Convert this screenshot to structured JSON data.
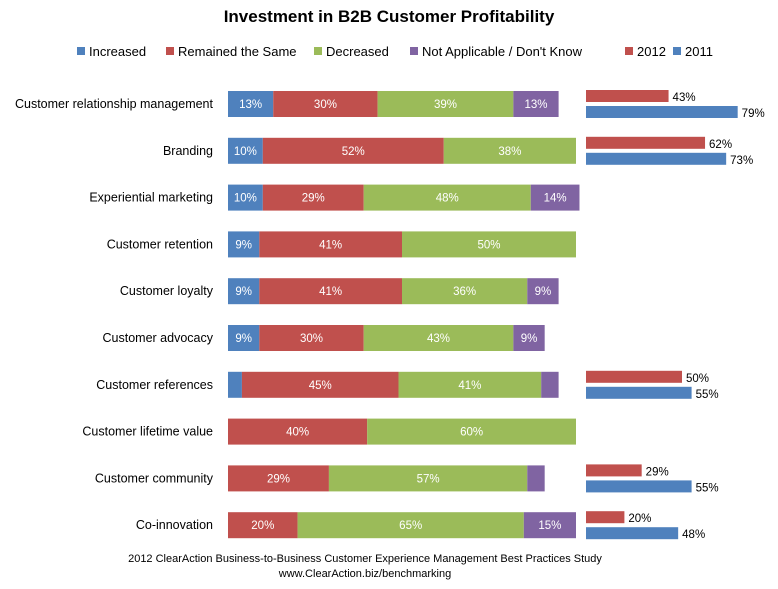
{
  "chart_data": [
    {
      "type": "bar",
      "orientation": "horizontal",
      "stacked": true,
      "title": "Investment in B2B Customer Profitability",
      "categories": [
        "Customer relationship management",
        "Branding",
        "Experiential marketing",
        "Customer retention",
        "Customer loyalty",
        "Customer advocacy",
        "Customer references",
        "Customer lifetime value",
        "Customer community",
        "Co-innovation"
      ],
      "series": [
        {
          "name": "Increased",
          "color": "#4F81BD",
          "values": [
            13,
            10,
            10,
            9,
            9,
            9,
            4,
            0,
            0,
            0
          ],
          "labels": [
            "13%",
            "10%",
            "10%",
            "9%",
            "9%",
            "9%",
            "",
            "",
            "",
            ""
          ]
        },
        {
          "name": "Remained the Same",
          "color": "#C0504D",
          "values": [
            30,
            52,
            29,
            41,
            41,
            30,
            45,
            40,
            29,
            20
          ],
          "labels": [
            "30%",
            "52%",
            "29%",
            "41%",
            "41%",
            "30%",
            "45%",
            "40%",
            "29%",
            "20%"
          ]
        },
        {
          "name": "Decreased",
          "color": "#9BBB59",
          "values": [
            39,
            38,
            48,
            50,
            36,
            43,
            41,
            60,
            57,
            65
          ],
          "labels": [
            "39%",
            "38%",
            "48%",
            "50%",
            "36%",
            "43%",
            "41%",
            "60%",
            "57%",
            "65%"
          ]
        },
        {
          "name": "Not Applicable / Don't Know",
          "color": "#8064A2",
          "values": [
            13,
            0,
            14,
            0,
            9,
            9,
            5,
            0,
            5,
            15
          ],
          "labels": [
            "13%",
            "",
            "14%",
            "",
            "9%",
            "9%",
            "",
            "",
            "",
            "15%"
          ]
        }
      ],
      "xlim": [
        0,
        100
      ],
      "legend": "top"
    },
    {
      "type": "bar",
      "orientation": "horizontal",
      "stacked": false,
      "categories": [
        "Customer relationship management",
        "Branding",
        "Customer references",
        "Customer community",
        "Co-innovation"
      ],
      "series": [
        {
          "name": "2012",
          "color": "#C0504D",
          "values": [
            43,
            62,
            50,
            29,
            20
          ],
          "labels": [
            "43%",
            "62%",
            "50%",
            "29%",
            "20%"
          ]
        },
        {
          "name": "2011",
          "color": "#4F81BD",
          "values": [
            79,
            73,
            55,
            55,
            48
          ],
          "labels": [
            "79%",
            "73%",
            "55%",
            "55%",
            "48%"
          ]
        }
      ],
      "xlim": [
        0,
        100
      ],
      "legend": "top"
    }
  ],
  "legend": [
    {
      "label": "Increased",
      "color": "#4F81BD"
    },
    {
      "label": "Remained the Same",
      "color": "#C0504D"
    },
    {
      "label": "Decreased",
      "color": "#9BBB59"
    },
    {
      "label": "Not Applicable / Don't Know",
      "color": "#8064A2"
    },
    {
      "label": "2012",
      "color": "#C0504D"
    },
    {
      "label": "2011",
      "color": "#4F81BD"
    }
  ],
  "source": {
    "line1": "2012 ClearAction Business-to-Business Customer Experience Management Best Practices Study",
    "line2": "www.ClearAction.biz/benchmarking"
  }
}
